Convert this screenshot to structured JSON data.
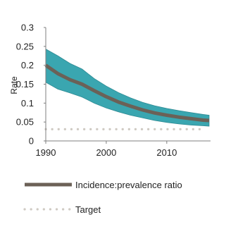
{
  "chart_data": {
    "type": "line",
    "xlabel": "",
    "ylabel": "Rate",
    "xlim": [
      1990,
      2017
    ],
    "ylim": [
      0,
      0.3
    ],
    "x_ticks": [
      1990,
      2000,
      2010
    ],
    "x_tick_labels": [
      "1990",
      "2000",
      "2010"
    ],
    "y_ticks": [
      0,
      0.05,
      0.1,
      0.15,
      0.2,
      0.25,
      0.3
    ],
    "y_tick_labels": [
      "0",
      "0.05",
      "0.1",
      "0.15",
      "0.2",
      "0.25",
      "0.3"
    ],
    "grid": false,
    "legend_position": "bottom",
    "band": {
      "x": [
        1990,
        1992,
        1994,
        1996,
        1998,
        2000,
        2002,
        2004,
        2006,
        2008,
        2010,
        2012,
        2014,
        2016,
        2017
      ],
      "upper": [
        0.243,
        0.225,
        0.205,
        0.19,
        0.165,
        0.145,
        0.128,
        0.114,
        0.102,
        0.093,
        0.086,
        0.08,
        0.075,
        0.07,
        0.068
      ],
      "lower": [
        0.155,
        0.137,
        0.127,
        0.116,
        0.1,
        0.087,
        0.077,
        0.068,
        0.061,
        0.054,
        0.049,
        0.045,
        0.042,
        0.04,
        0.039
      ],
      "color": "#3aa6b0",
      "edge_color": "#2e8a93"
    },
    "series": [
      {
        "name": "Incidence:prevalence ratio",
        "style": "solid",
        "color": "#6b6157",
        "x": [
          1990,
          1992,
          1994,
          1996,
          1998,
          2000,
          2002,
          2004,
          2006,
          2008,
          2010,
          2012,
          2014,
          2016,
          2017
        ],
        "y": [
          0.2,
          0.178,
          0.162,
          0.15,
          0.133,
          0.117,
          0.103,
          0.092,
          0.082,
          0.074,
          0.068,
          0.063,
          0.059,
          0.055,
          0.054
        ]
      },
      {
        "name": "Target",
        "style": "dotted",
        "color": "#cfcac3",
        "x": [
          1990,
          1992,
          1994,
          1996,
          1998,
          2000,
          2002,
          2004,
          2006,
          2008,
          2010,
          2012,
          2014,
          2016
        ],
        "y": [
          0.031,
          0.031,
          0.031,
          0.031,
          0.031,
          0.031,
          0.031,
          0.031,
          0.031,
          0.031,
          0.031,
          0.031,
          0.031,
          0.031
        ]
      }
    ]
  }
}
